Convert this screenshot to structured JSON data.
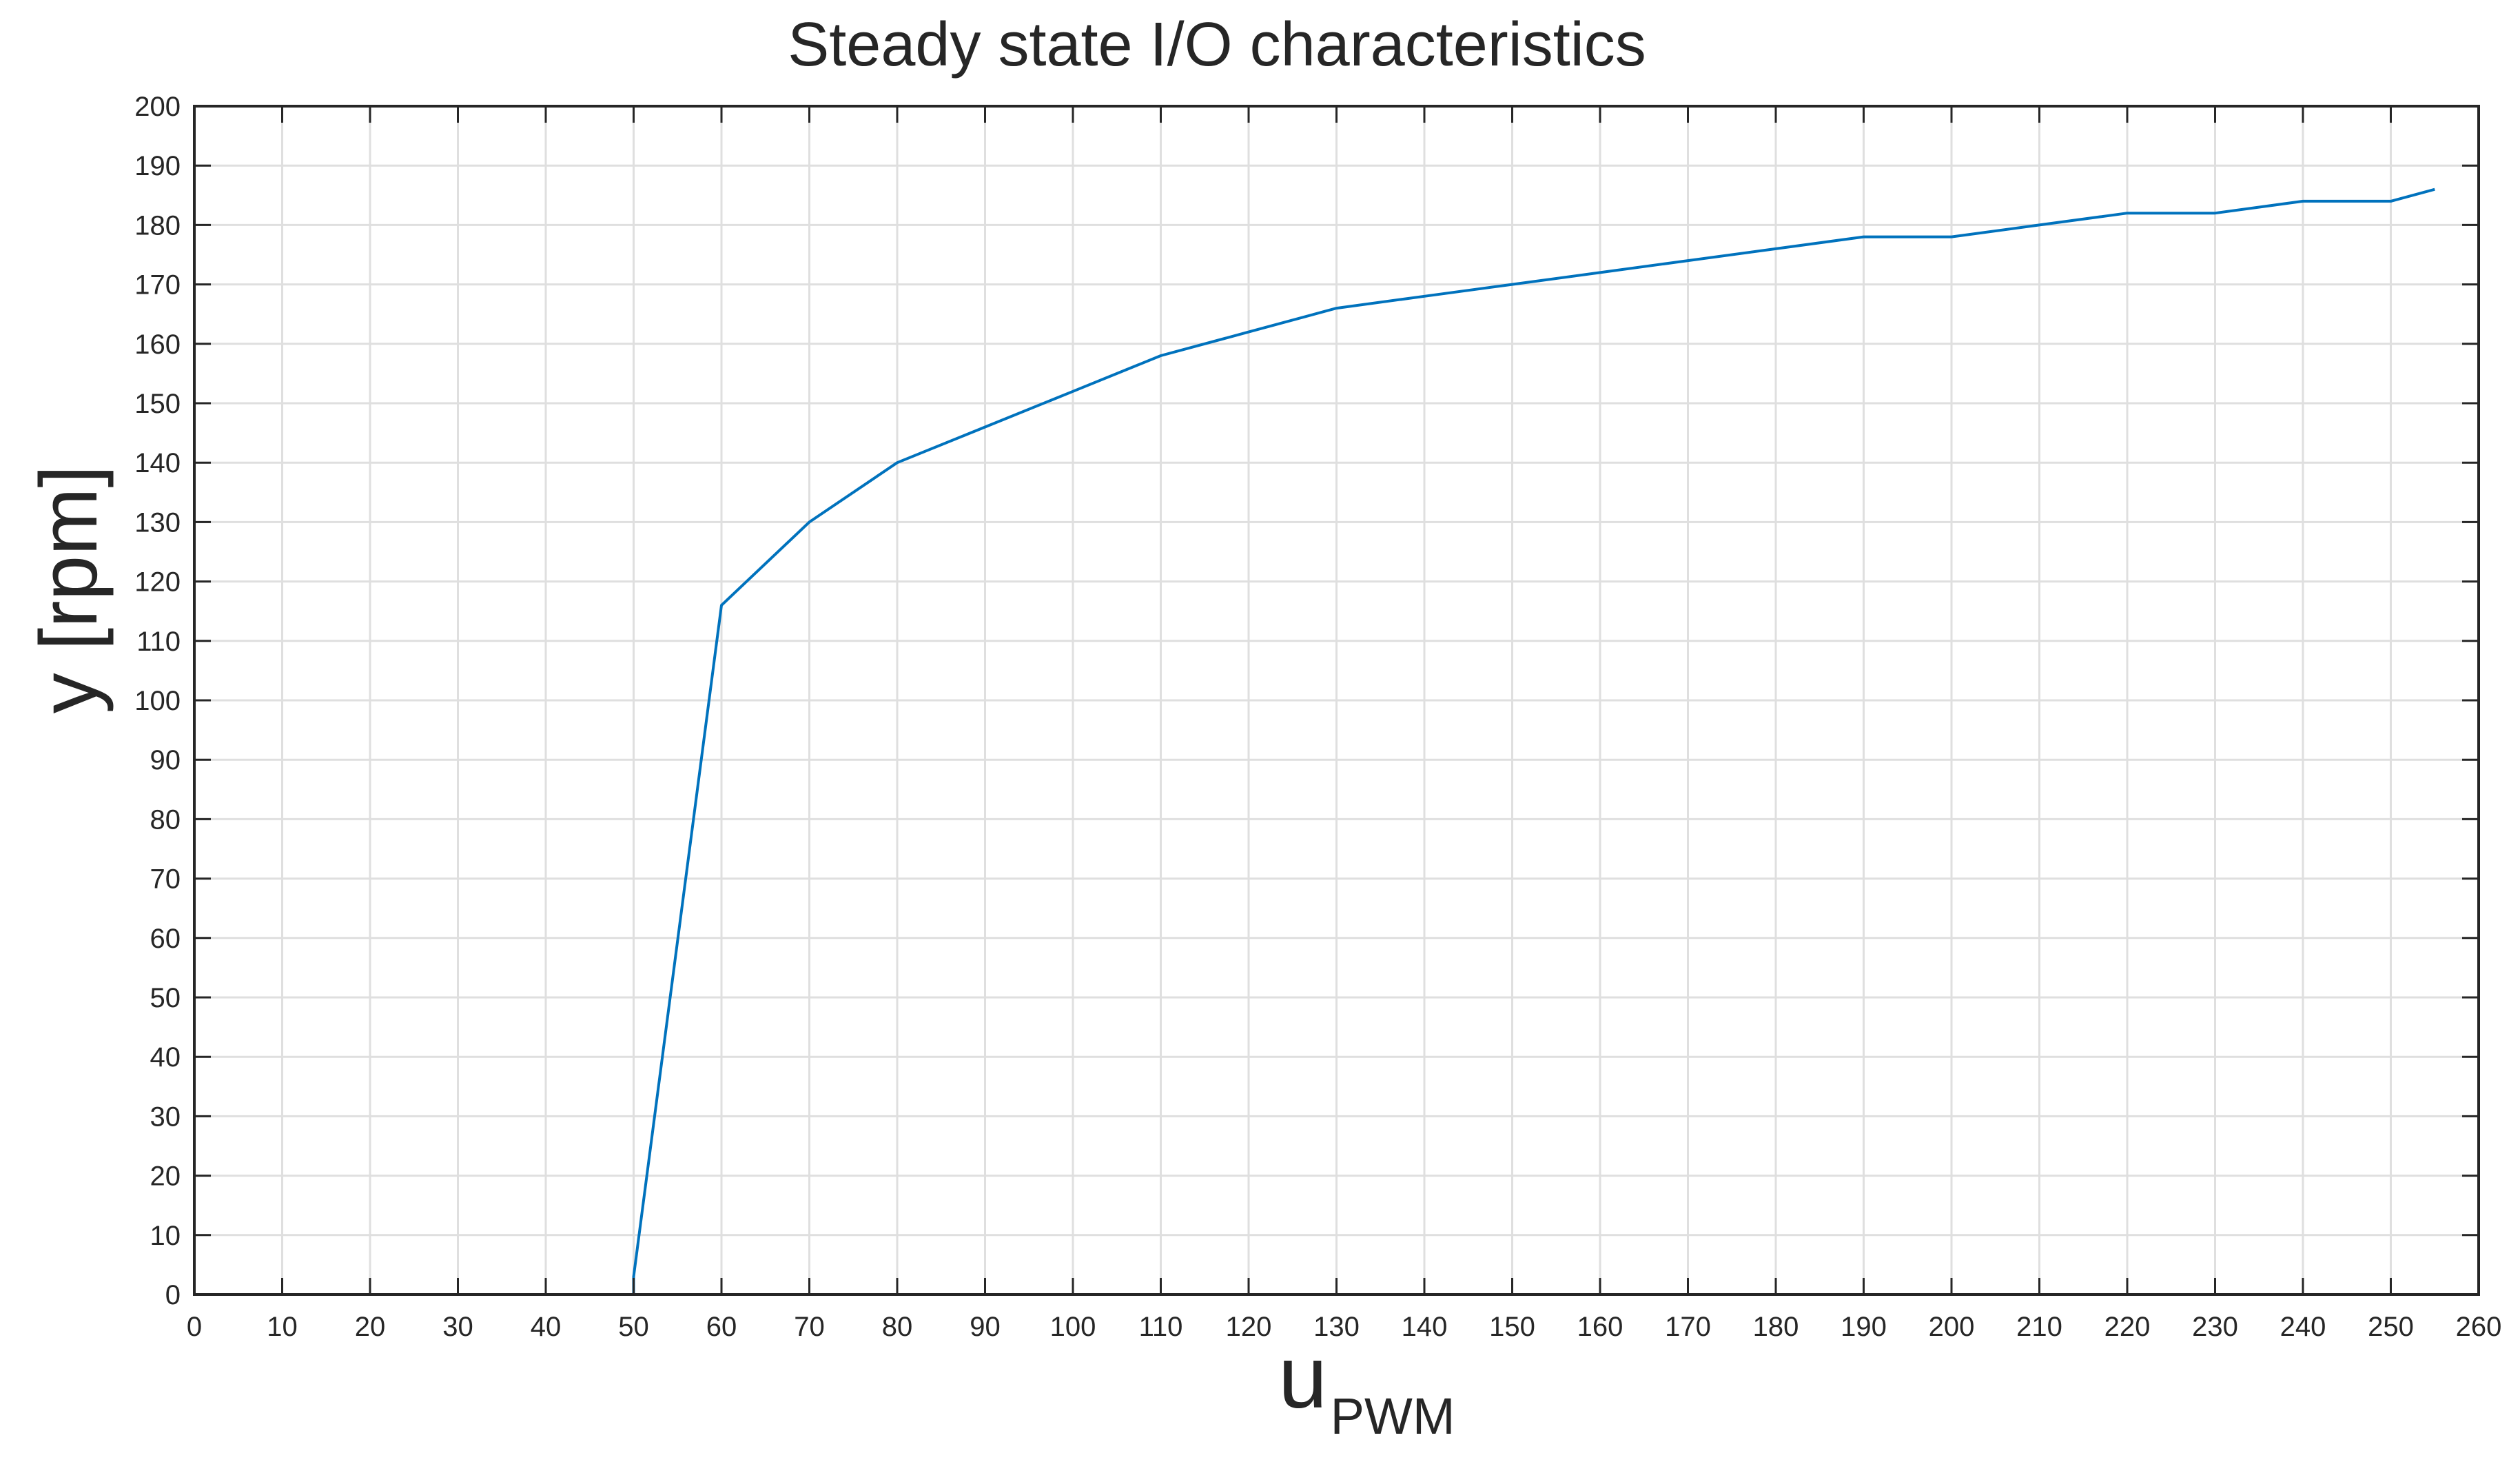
{
  "chart_data": {
    "type": "line",
    "title": "Steady state I/O characteristics",
    "xlabel": {
      "main": "u",
      "subscript": "PWM"
    },
    "ylabel": "y [rpm]",
    "xlim": [
      0,
      260
    ],
    "ylim": [
      0,
      200
    ],
    "x_ticks": [
      0,
      10,
      20,
      30,
      40,
      50,
      60,
      70,
      80,
      90,
      100,
      110,
      120,
      130,
      140,
      150,
      160,
      170,
      180,
      190,
      200,
      210,
      220,
      230,
      240,
      250,
      260
    ],
    "y_ticks": [
      0,
      10,
      20,
      30,
      40,
      50,
      60,
      70,
      80,
      90,
      100,
      110,
      120,
      130,
      140,
      150,
      160,
      170,
      180,
      190,
      200
    ],
    "grid": true,
    "series": [
      {
        "color": "#0072bd",
        "x": [
          0,
          10,
          20,
          30,
          40,
          50,
          50,
          60,
          70,
          80,
          90,
          100,
          110,
          120,
          130,
          140,
          150,
          160,
          170,
          180,
          190,
          200,
          210,
          220,
          230,
          240,
          250,
          255
        ],
        "y": [
          0,
          0,
          0,
          0,
          0,
          0,
          3,
          116,
          130,
          140,
          146,
          152,
          158,
          162,
          166,
          168,
          170,
          172,
          174,
          176,
          178,
          178,
          180,
          182,
          182,
          184,
          184,
          186
        ]
      }
    ]
  }
}
